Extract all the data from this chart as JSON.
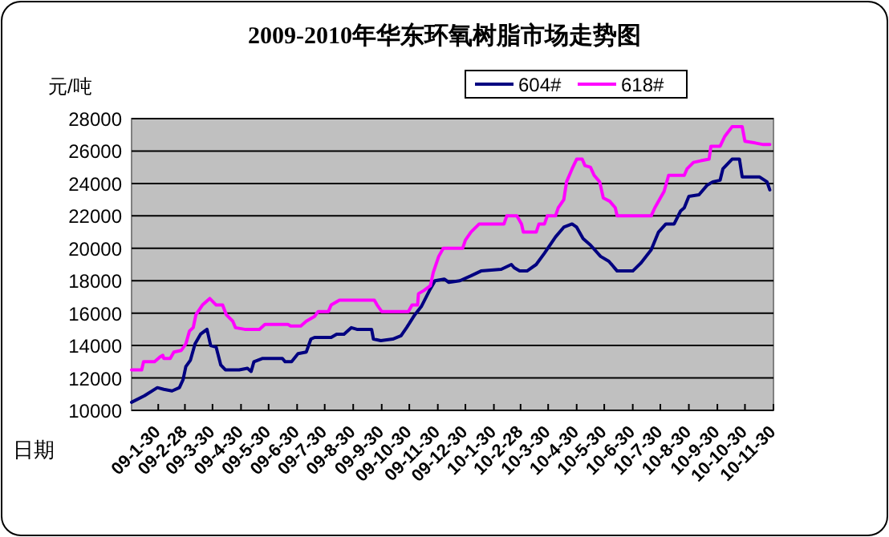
{
  "chart_data": {
    "type": "line",
    "title": "2009-2010年华东环氧树脂市场走势图",
    "ylabel": "元/吨",
    "xlabel": "日期",
    "grid": "y",
    "legend": "top",
    "xlim": [
      "2009-01-01",
      "2010-11-30"
    ],
    "ylim": [
      10000,
      28000
    ],
    "yticks": [
      10000,
      12000,
      14000,
      16000,
      18000,
      20000,
      22000,
      24000,
      26000,
      28000
    ],
    "xticks": [
      {
        "value": "2009-01-30",
        "label": "09-1-30"
      },
      {
        "value": "2009-02-28",
        "label": "09-2-28"
      },
      {
        "value": "2009-03-30",
        "label": "09-3-30"
      },
      {
        "value": "2009-04-30",
        "label": "09-4-30"
      },
      {
        "value": "2009-05-30",
        "label": "09-5-30"
      },
      {
        "value": "2009-06-30",
        "label": "09-6-30"
      },
      {
        "value": "2009-07-30",
        "label": "09-7-30"
      },
      {
        "value": "2009-08-30",
        "label": "09-8-30"
      },
      {
        "value": "2009-09-30",
        "label": "09-9-30"
      },
      {
        "value": "2009-10-30",
        "label": "09-10-30"
      },
      {
        "value": "2009-11-30",
        "label": "09-11-30"
      },
      {
        "value": "2009-12-30",
        "label": "09-12-30"
      },
      {
        "value": "2010-01-30",
        "label": "10-1-30"
      },
      {
        "value": "2010-02-28",
        "label": "10-2-28"
      },
      {
        "value": "2010-03-30",
        "label": "10-3-30"
      },
      {
        "value": "2010-04-30",
        "label": "10-4-30"
      },
      {
        "value": "2010-05-30",
        "label": "10-5-30"
      },
      {
        "value": "2010-06-30",
        "label": "10-6-30"
      },
      {
        "value": "2010-07-30",
        "label": "10-7-30"
      },
      {
        "value": "2010-08-30",
        "label": "10-8-30"
      },
      {
        "value": "2010-09-30",
        "label": "10-9-30"
      },
      {
        "value": "2010-10-30",
        "label": "10-10-30"
      },
      {
        "value": "2010-11-30",
        "label": "10-11-30"
      }
    ],
    "series": [
      {
        "name": "604#",
        "color": "#000080",
        "x": [
          "2009-01-01",
          "2009-01-15",
          "2009-01-29",
          "2009-02-05",
          "2009-02-14",
          "2009-02-22",
          "2009-02-26",
          "2009-03-01",
          "2009-03-06",
          "2009-03-11",
          "2009-03-17",
          "2009-03-24",
          "2009-03-28",
          "2009-04-03",
          "2009-04-08",
          "2009-04-13",
          "2009-04-28",
          "2009-05-07",
          "2009-05-11",
          "2009-05-14",
          "2009-05-23",
          "2009-06-14",
          "2009-06-17",
          "2009-06-24",
          "2009-07-01",
          "2009-07-10",
          "2009-07-15",
          "2009-07-19",
          "2009-08-06",
          "2009-08-12",
          "2009-08-20",
          "2009-08-28",
          "2009-09-03",
          "2009-09-19",
          "2009-09-21",
          "2009-09-29",
          "2009-10-12",
          "2009-10-21",
          "2009-10-27",
          "2009-11-05",
          "2009-11-12",
          "2009-11-21",
          "2009-11-27",
          "2009-12-07",
          "2009-12-12",
          "2009-12-24",
          "2010-01-05",
          "2010-01-16",
          "2010-02-07",
          "2010-02-18",
          "2010-02-21",
          "2010-02-27",
          "2010-03-07",
          "2010-03-17",
          "2010-03-26",
          "2010-04-07",
          "2010-04-16",
          "2010-04-25",
          "2010-04-30",
          "2010-05-07",
          "2010-05-15",
          "2010-05-26",
          "2010-06-04",
          "2010-06-13",
          "2010-06-30",
          "2010-07-09",
          "2010-07-20",
          "2010-07-28",
          "2010-08-05",
          "2010-08-14",
          "2010-08-21",
          "2010-08-25",
          "2010-08-30",
          "2010-09-10",
          "2010-09-19",
          "2010-09-25",
          "2010-10-03",
          "2010-10-06",
          "2010-10-16",
          "2010-10-24",
          "2010-10-27",
          "2010-11-15",
          "2010-11-23",
          "2010-11-26"
        ],
        "values": [
          10500,
          10900,
          11400,
          11300,
          11200,
          11400,
          11900,
          12700,
          13100,
          14100,
          14700,
          15000,
          14000,
          13900,
          12800,
          12500,
          12500,
          12600,
          12400,
          13000,
          13200,
          13200,
          13000,
          13000,
          13500,
          13600,
          14400,
          14500,
          14500,
          14700,
          14700,
          15100,
          15000,
          15000,
          14400,
          14300,
          14400,
          14600,
          15100,
          15900,
          16400,
          17400,
          18000,
          18100,
          17900,
          18000,
          18300,
          18600,
          18700,
          19000,
          18800,
          18600,
          18600,
          19000,
          19700,
          20700,
          21300,
          21500,
          21300,
          20600,
          20200,
          19500,
          19200,
          18600,
          18600,
          19100,
          19900,
          21000,
          21500,
          21500,
          22300,
          22500,
          23200,
          23300,
          23900,
          24100,
          24200,
          24900,
          25500,
          25500,
          24400,
          24400,
          24100,
          23600
        ]
      },
      {
        "name": "618#",
        "color": "#ff00ff",
        "x": [
          "2009-01-01",
          "2009-01-12",
          "2009-01-14",
          "2009-01-26",
          "2009-02-01",
          "2009-02-04",
          "2009-02-05",
          "2009-02-12",
          "2009-02-16",
          "2009-02-24",
          "2009-03-01",
          "2009-03-05",
          "2009-03-09",
          "2009-03-12",
          "2009-03-19",
          "2009-03-27",
          "2009-04-03",
          "2009-04-10",
          "2009-04-14",
          "2009-04-21",
          "2009-04-24",
          "2009-05-04",
          "2009-05-20",
          "2009-05-26",
          "2009-06-20",
          "2009-06-23",
          "2009-07-04",
          "2009-07-10",
          "2009-07-19",
          "2009-07-23",
          "2009-08-03",
          "2009-08-06",
          "2009-08-15",
          "2009-09-22",
          "2009-09-25",
          "2009-09-30",
          "2009-10-29",
          "2009-11-02",
          "2009-11-08",
          "2009-11-09",
          "2009-11-15",
          "2009-11-22",
          "2009-11-25",
          "2009-12-01",
          "2009-12-06",
          "2009-12-27",
          "2009-12-30",
          "2010-01-05",
          "2010-01-14",
          "2010-02-10",
          "2010-02-13",
          "2010-02-24",
          "2010-03-01",
          "2010-03-03",
          "2010-03-17",
          "2010-03-20",
          "2010-03-26",
          "2010-03-29",
          "2010-04-07",
          "2010-04-10",
          "2010-04-16",
          "2010-04-19",
          "2010-04-25",
          "2010-04-30",
          "2010-05-06",
          "2010-05-09",
          "2010-05-15",
          "2010-05-19",
          "2010-05-25",
          "2010-05-29",
          "2010-06-05",
          "2010-06-11",
          "2010-06-13",
          "2010-07-20",
          "2010-07-24",
          "2010-07-30",
          "2010-08-03",
          "2010-08-08",
          "2010-08-25",
          "2010-08-28",
          "2010-09-04",
          "2010-09-12",
          "2010-09-21",
          "2010-09-23",
          "2010-10-03",
          "2010-10-08",
          "2010-10-16",
          "2010-10-27",
          "2010-10-30",
          "2010-11-10",
          "2010-11-19",
          "2010-11-26"
        ],
        "values": [
          12500,
          12500,
          13000,
          13000,
          13300,
          13400,
          13200,
          13200,
          13600,
          13700,
          14100,
          14900,
          15100,
          15900,
          16500,
          16900,
          16500,
          16500,
          15900,
          15500,
          15100,
          15000,
          15000,
          15300,
          15300,
          15200,
          15200,
          15500,
          15800,
          16100,
          16100,
          16500,
          16800,
          16800,
          16500,
          16100,
          16100,
          16500,
          16500,
          17200,
          17400,
          17700,
          18500,
          19500,
          20000,
          20000,
          20500,
          21000,
          21500,
          21500,
          22000,
          22000,
          21500,
          21000,
          21000,
          21500,
          21500,
          22000,
          22000,
          22500,
          23000,
          24100,
          24900,
          25500,
          25500,
          25100,
          25000,
          24500,
          24100,
          23100,
          22900,
          22500,
          22000,
          22000,
          22500,
          23100,
          23500,
          24500,
          24500,
          24900,
          25300,
          25400,
          25500,
          26300,
          26300,
          26900,
          27500,
          27500,
          26600,
          26500,
          26400,
          26400
        ]
      }
    ]
  }
}
